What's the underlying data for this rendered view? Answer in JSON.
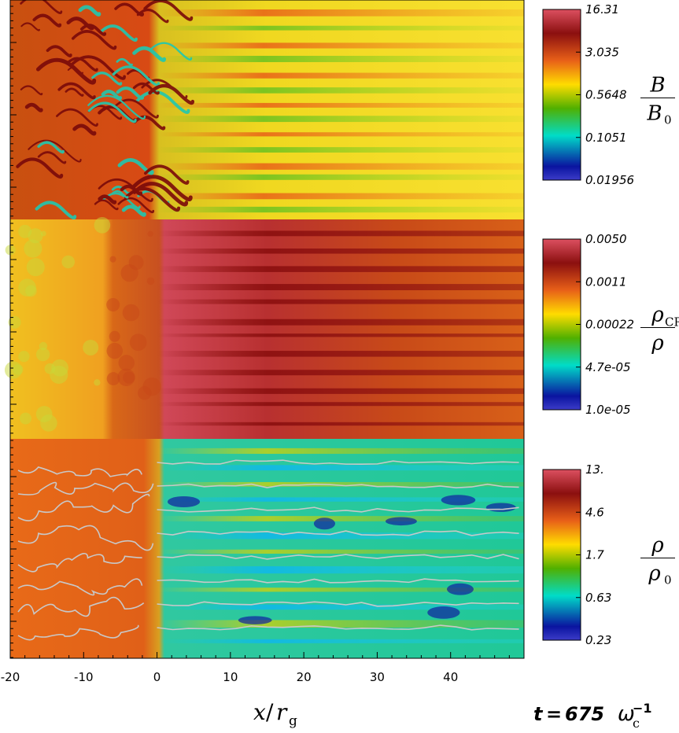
{
  "chart_data": {
    "type": "heatmap",
    "title": "",
    "xlabel": "x/r_g",
    "x_ticks": [
      "-20",
      "-10",
      "0",
      "10",
      "20",
      "30",
      "40"
    ],
    "xlim": [
      -20,
      50
    ],
    "panels": [
      {
        "name": "B/B0",
        "quantity": {
          "numerator": "B",
          "denominator": "B",
          "denominator_sub": "0"
        },
        "colorbar_ticks": [
          "16.31",
          "3.035",
          "0.5648",
          "0.1051",
          "0.01956"
        ],
        "scale": "log",
        "colormap": [
          "#dc5060",
          "#8b0f0f",
          "#e86018",
          "#ffdc00",
          "#50b000",
          "#00dcc8",
          "#0a14a0",
          "#3c3cc8"
        ]
      },
      {
        "name": "rho_CR/rho",
        "quantity": {
          "numerator": "ρ",
          "numerator_sub": "CR",
          "denominator": "ρ"
        },
        "colorbar_ticks": [
          "0.0050",
          "0.0011",
          "0.00022",
          "4.7e-05",
          "1.0e-05"
        ],
        "scale": "log",
        "colormap": [
          "#dc5060",
          "#8b0f0f",
          "#e86018",
          "#ffdc00",
          "#50b000",
          "#00dcc8",
          "#0a14a0",
          "#3c3cc8"
        ]
      },
      {
        "name": "rho/rho0",
        "quantity": {
          "numerator": "ρ",
          "denominator": "ρ",
          "denominator_sub": "0"
        },
        "colorbar_ticks": [
          "13.",
          "4.6",
          "1.7",
          "0.63",
          "0.23"
        ],
        "scale": "log",
        "colormap": [
          "#dc5060",
          "#8b0f0f",
          "#e86018",
          "#ffdc00",
          "#50b000",
          "#00dcc8",
          "#0a14a0",
          "#3c3cc8"
        ]
      }
    ],
    "shock_x": 0
  },
  "time_label": {
    "prefix": "t",
    "equals": "=",
    "value": "675",
    "symbol": "ω",
    "sub": "c",
    "sup": "−1"
  }
}
